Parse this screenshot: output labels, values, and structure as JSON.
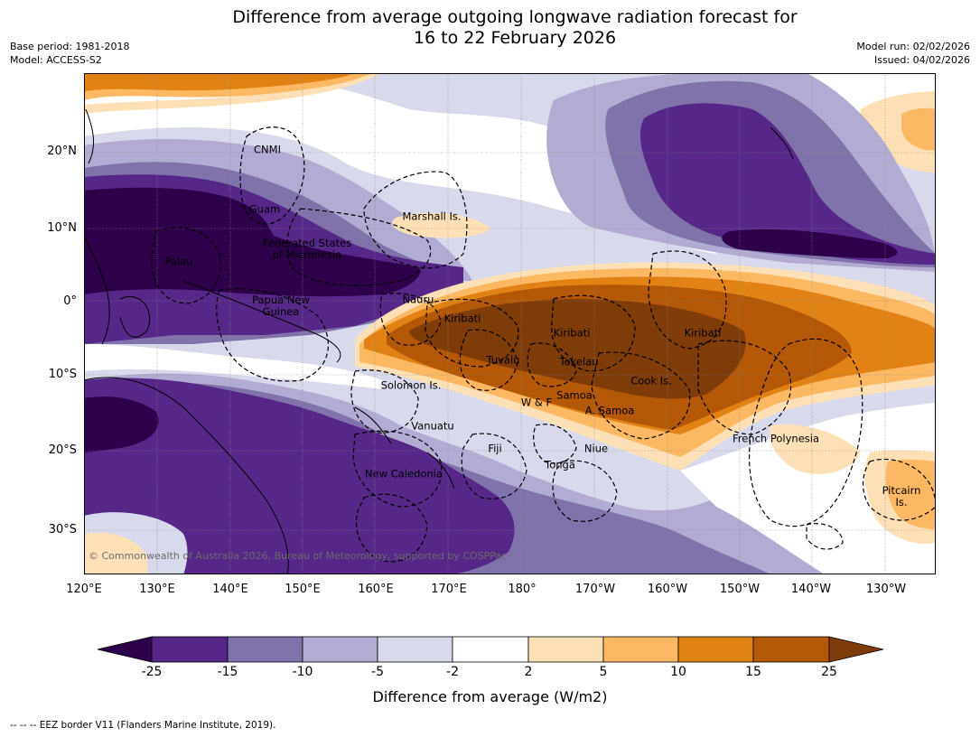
{
  "title": {
    "line1": "Difference from average outgoing longwave radiation forecast for",
    "line2": "16 to 22 February 2026"
  },
  "meta": {
    "base_period": "Base period: 1981-2018",
    "model": "Model: ACCESS-S2",
    "model_run": "Model run: 02/02/2026",
    "issued": "Issued: 04/02/2026"
  },
  "axes": {
    "lat_labels": [
      "20°N",
      "10°N",
      "0°",
      "10°S",
      "20°S",
      "30°S"
    ],
    "lon_labels": [
      "120°E",
      "130°E",
      "140°E",
      "150°E",
      "160°E",
      "170°E",
      "180°",
      "170°W",
      "160°W",
      "150°W",
      "140°W",
      "130°W"
    ]
  },
  "places": [
    {
      "name": "CNMI"
    },
    {
      "name": "Guam"
    },
    {
      "name": "Marshall Is."
    },
    {
      "name": "Federated States\nof Micronesia"
    },
    {
      "name": "Palau"
    },
    {
      "name": "Nauru"
    },
    {
      "name": "Papua New\nGuinea"
    },
    {
      "name": "Kiribati"
    },
    {
      "name": "Kiribati"
    },
    {
      "name": "Kiribati"
    },
    {
      "name": "Tuvalu"
    },
    {
      "name": "Tokelau"
    },
    {
      "name": "Cook Is."
    },
    {
      "name": "Solomon Is."
    },
    {
      "name": "W & F"
    },
    {
      "name": "Samoa"
    },
    {
      "name": "A. Samoa"
    },
    {
      "name": "Vanuatu"
    },
    {
      "name": "Fiji"
    },
    {
      "name": "Niue"
    },
    {
      "name": "Tonga"
    },
    {
      "name": "New Caledonia"
    },
    {
      "name": "French Polynesia"
    },
    {
      "name": "Pitcairn\nIs."
    }
  ],
  "copyright": "© Commonwealth of Australia 2026, Bureau of Meteorology, supported by COSPPac",
  "colorbar": {
    "ticks": [
      "-25",
      "-15",
      "-10",
      "-5",
      "-2",
      "2",
      "5",
      "10",
      "15",
      "25"
    ],
    "colors": {
      "below_min": "#2d004b",
      "c1": "#542788",
      "c2": "#8073ac",
      "c3": "#b2abd2",
      "c4": "#d8daeb",
      "c5": "#ffffff",
      "c6": "#fee0b6",
      "c7": "#fdb863",
      "c8": "#e08214",
      "c9": "#b35806",
      "above_max": "#7f3b08"
    },
    "label": "Difference from average (W/m2)"
  },
  "footnote": "--  --  -- EEZ border V11 (Flanders Marine Institute, 2019)."
}
